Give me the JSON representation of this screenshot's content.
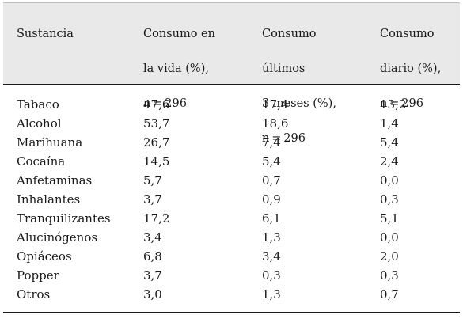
{
  "table": {
    "headers": [
      [
        "Sustancia"
      ],
      [
        "Consumo en",
        "la vida (%),",
        "n = 296"
      ],
      [
        "Consumo",
        "últimos",
        "3 meses (%),",
        "n = 296"
      ],
      [
        "Consumo",
        "diario (%),",
        "n = 296"
      ]
    ],
    "rows": [
      [
        "Tabaco",
        "47,6",
        "17,4",
        "13,2"
      ],
      [
        "Alcohol",
        "53,7",
        "18,6",
        "1,4"
      ],
      [
        "Marihuana",
        "26,7",
        "7,4",
        "5,4"
      ],
      [
        "Cocaína",
        "14,5",
        "5,4",
        "2,4"
      ],
      [
        "Anfetaminas",
        "5,7",
        "0,7",
        "0,0"
      ],
      [
        "Inhalantes",
        "3,7",
        "0,9",
        "0,3"
      ],
      [
        "Tranquilizantes",
        "17,2",
        "6,1",
        "5,1"
      ],
      [
        "Alucinógenos",
        "3,4",
        "1,3",
        "0,0"
      ],
      [
        "Opiáceos",
        "6,8",
        "3,4",
        "2,0"
      ],
      [
        "Popper",
        "3,7",
        "0,3",
        "0,3"
      ],
      [
        "Otros",
        "3,0",
        "1,3",
        "0,7"
      ]
    ]
  }
}
